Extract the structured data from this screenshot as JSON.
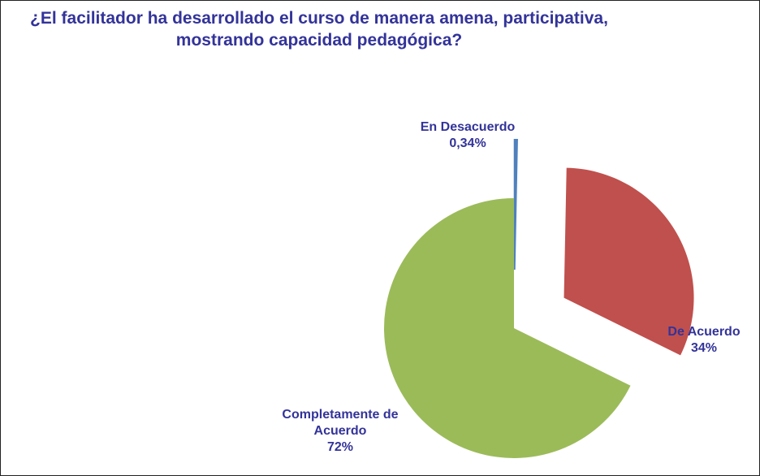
{
  "chart_data": {
    "type": "pie",
    "title": "¿El facilitador ha desarrollado el curso de manera amena, participativa, mostrando capacidad pedagógica?",
    "categories": [
      "En Desacuerdo",
      "De Acuerdo",
      "Completamente de Acuerdo"
    ],
    "values": [
      0.34,
      34,
      72
    ],
    "value_labels": [
      "0,34%",
      "34%",
      "72%"
    ],
    "colors": [
      "#4f81bd",
      "#c0504d",
      "#9bbb59"
    ],
    "explode": [
      true,
      true,
      false
    ]
  }
}
